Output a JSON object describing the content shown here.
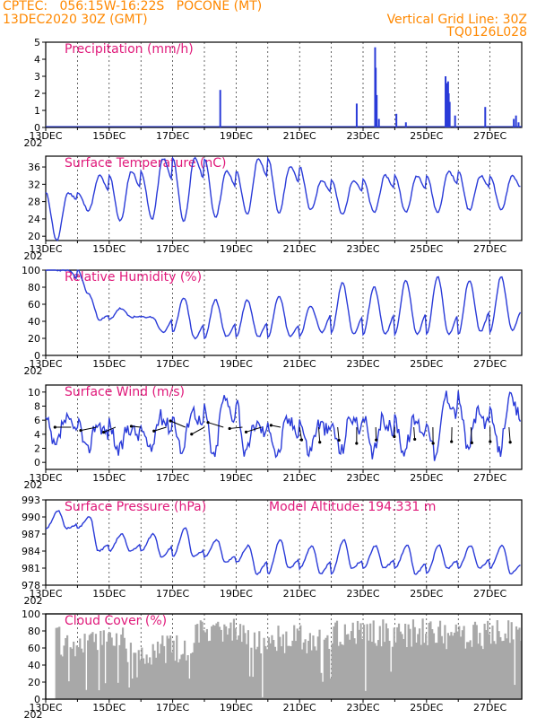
{
  "header": {
    "line1": "CPTEC:   056:15W-16:22S   POCONE (MT)",
    "line2_left": "13DEC2020 30Z (GMT)",
    "line2_right": "Vertical Grid Line: 30Z",
    "line3_right": "TQ0126L028"
  },
  "colors": {
    "header": "#ff8800",
    "title": "#e0197a",
    "line": "#2a3bd8",
    "bar": "#2a3bd8",
    "cloud": "#a8a8a8",
    "grid": "#000000"
  },
  "x_axis": {
    "type": "date",
    "start": "13DEC",
    "end": "28DEC",
    "tick_labels": [
      "13DEC",
      "15DEC",
      "17DEC",
      "19DEC",
      "21DEC",
      "23DEC",
      "25DEC",
      "27DEC"
    ],
    "year_stub": "202"
  },
  "chart_data": [
    {
      "id": "precip",
      "type": "bar",
      "title": "Precipitation (mm/h)",
      "ylim": [
        0,
        5
      ],
      "yticks": [
        "0",
        "1",
        "2",
        "3",
        "4",
        "5"
      ],
      "grid": "dashed-vertical",
      "points": [
        [
          5.5,
          2.2
        ],
        [
          9.8,
          1.4
        ],
        [
          10.38,
          4.7
        ],
        [
          10.4,
          3.5
        ],
        [
          10.43,
          1.9
        ],
        [
          10.5,
          0.5
        ],
        [
          11.05,
          0.8
        ],
        [
          11.35,
          0.3
        ],
        [
          12.6,
          3.0
        ],
        [
          12.63,
          2.6
        ],
        [
          12.66,
          2.4
        ],
        [
          12.7,
          2.0
        ],
        [
          12.73,
          1.5
        ],
        [
          12.68,
          2.7
        ],
        [
          12.9,
          0.7
        ],
        [
          13.85,
          1.2
        ],
        [
          14.75,
          0.5
        ],
        [
          14.82,
          0.7
        ],
        [
          14.9,
          0.3
        ]
      ]
    },
    {
      "id": "temp",
      "type": "line",
      "title": "Surface Temperature (nC)",
      "ylim": [
        19,
        38.5
      ],
      "yticks": [
        "20",
        "24",
        "28",
        "32",
        "36"
      ],
      "amp_low": [
        19,
        26,
        23.5,
        24,
        23.5,
        24.5,
        25,
        25.5,
        26,
        25,
        25.5,
        25.5,
        25.5,
        26,
        26,
        27
      ],
      "amp_high": [
        30,
        34,
        35,
        38,
        38,
        35,
        38,
        36,
        33,
        33,
        34,
        34,
        35,
        34,
        34,
        35
      ]
    },
    {
      "id": "rh",
      "type": "line",
      "title": "Relative Humidity (%)",
      "ylim": [
        0,
        100
      ],
      "yticks": [
        "0",
        "20",
        "40",
        "60",
        "80",
        "100"
      ],
      "amp_low": [
        100,
        42,
        45,
        27,
        20,
        22,
        22,
        23,
        27,
        25,
        25,
        25,
        25,
        28,
        30,
        35
      ],
      "amp_high": [
        100,
        72,
        55,
        45,
        68,
        65,
        65,
        70,
        58,
        85,
        80,
        88,
        92,
        88,
        92,
        40
      ]
    },
    {
      "id": "wind",
      "type": "line",
      "title": "Surface Wind (m/s)",
      "ylim": [
        -1,
        11
      ],
      "yticks": [
        "0",
        "2",
        "4",
        "6",
        "8",
        "10"
      ],
      "amp_low": [
        2,
        1.5,
        1.5,
        1.5,
        1.5,
        0.5,
        1,
        1,
        1.5,
        1.5,
        1,
        1.5,
        0.8,
        2,
        1.5,
        0
      ],
      "amp_high": [
        6,
        5.5,
        5,
        6.5,
        7.5,
        9,
        5.5,
        6,
        5.5,
        6.5,
        6,
        6,
        9.5,
        7,
        9,
        8.5
      ],
      "arrows": [
        [
          0.8,
          1.0,
          0
        ],
        [
          1.6,
          1.0,
          0.2
        ],
        [
          2.2,
          0.8,
          0.4
        ],
        [
          3.0,
          0.6,
          -0.1
        ],
        [
          3.8,
          0.8,
          0.3
        ],
        [
          4.4,
          1.0,
          -0.4
        ],
        [
          5.0,
          0.9,
          0.5
        ],
        [
          5.6,
          1.0,
          -0.3
        ],
        [
          6.2,
          0.8,
          0.1
        ],
        [
          6.8,
          1.0,
          0.3
        ],
        [
          7.4,
          0.6,
          -0.2
        ],
        [
          8.0,
          1.0,
          0.9
        ],
        [
          8.6,
          1.0,
          1.2
        ],
        [
          9.2,
          0.9,
          1.1
        ],
        [
          9.8,
          1.0,
          1.6
        ],
        [
          10.4,
          0.8,
          1.4
        ],
        [
          11.0,
          0.6,
          1.8
        ],
        [
          11.6,
          0.8,
          1.2
        ],
        [
          12.2,
          1.0,
          1.5
        ],
        [
          12.8,
          0.9,
          1.7
        ],
        [
          13.4,
          1.0,
          1.3
        ],
        [
          14.0,
          0.9,
          1.5
        ],
        [
          14.6,
          1.0,
          1.2
        ]
      ]
    },
    {
      "id": "pres",
      "type": "line",
      "title": "Surface Pressure (hPa)",
      "annotation": "Model Altitude: 194.331 m",
      "ylim": [
        978,
        993
      ],
      "yticks": [
        "978",
        "981",
        "984",
        "987",
        "990",
        "993"
      ],
      "amp_low": [
        988,
        984,
        984,
        983,
        983,
        982,
        980,
        981,
        980,
        981,
        981,
        980,
        981,
        981,
        980,
        978
      ],
      "amp_high": [
        991,
        990,
        987,
        987,
        988,
        986,
        985,
        986,
        985,
        986,
        985,
        985,
        985,
        985,
        985,
        984
      ]
    },
    {
      "id": "cloud",
      "type": "area",
      "title": "Cloud Cover (%)",
      "ylim": [
        0,
        100
      ],
      "yticks": [
        "0",
        "20",
        "40",
        "60",
        "80",
        "100"
      ],
      "segments": [
        [
          0.3,
          2.5,
          85
        ],
        [
          2.5,
          4.7,
          75
        ],
        [
          4.7,
          6.2,
          95
        ],
        [
          6.2,
          9.0,
          88
        ],
        [
          9.0,
          12.0,
          95
        ],
        [
          12.0,
          14.0,
          92
        ],
        [
          14.0,
          15.0,
          96
        ]
      ]
    }
  ]
}
